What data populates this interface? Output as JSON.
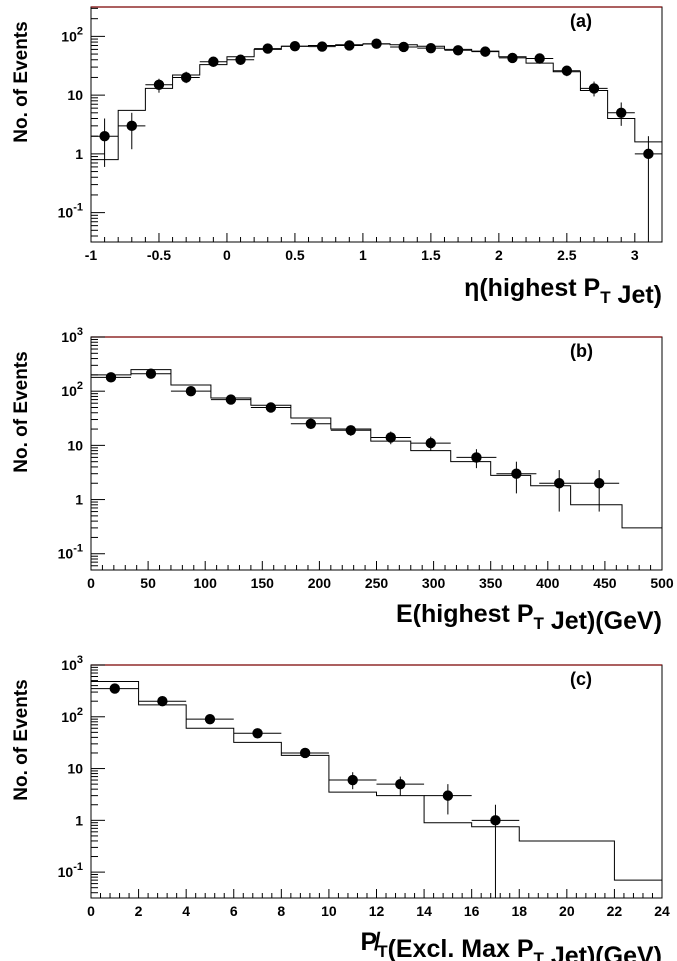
{
  "chart_data": [
    {
      "panel_label": "(a)",
      "type": "histogram-with-points",
      "ylabel": "No. of Events",
      "xlabel": "η(highest P_T Jet)",
      "xlim": [
        -1,
        3.2
      ],
      "ylim_log10": [
        -1.5,
        2.5
      ],
      "xticks": [
        -1,
        -0.5,
        0,
        0.5,
        1,
        1.5,
        2,
        2.5,
        3
      ],
      "xtick_labels": [
        "-1",
        "-0.5",
        "0",
        "0.5",
        "1",
        "1.5",
        "2",
        "2.5",
        "3"
      ],
      "yticks": [
        {
          "value": 0.1,
          "base": "10",
          "exp": "-1"
        },
        {
          "value": 1,
          "label": "1"
        },
        {
          "value": 10,
          "label": "10"
        },
        {
          "value": 100,
          "base": "10",
          "exp": "2"
        }
      ],
      "histogram": {
        "edges": [
          -1,
          -0.8,
          -0.6,
          -0.4,
          -0.2,
          0,
          0.2,
          0.4,
          0.6,
          0.8,
          1,
          1.2,
          1.4,
          1.6,
          1.8,
          2,
          2.2,
          2.4,
          2.6,
          2.8,
          3,
          3.2
        ],
        "values": [
          0.8,
          5.5,
          13,
          22,
          33,
          45,
          60,
          68,
          70,
          72,
          74,
          72,
          68,
          60,
          56,
          45,
          35,
          25,
          12,
          4,
          1.6
        ]
      },
      "points": [
        {
          "x": -0.9,
          "y": 2,
          "ylo": 0.6,
          "yhi": 4,
          "xerr": 0.1
        },
        {
          "x": -0.7,
          "y": 3,
          "ylo": 1.2,
          "yhi": 5,
          "xerr": 0.1
        },
        {
          "x": -0.5,
          "y": 15,
          "ylo": 11,
          "yhi": 19,
          "xerr": 0.1
        },
        {
          "x": -0.3,
          "y": 20,
          "ylo": 16,
          "yhi": 25,
          "xerr": 0.1
        },
        {
          "x": -0.1,
          "y": 37,
          "ylo": 31,
          "yhi": 43,
          "xerr": 0.1
        },
        {
          "x": 0.1,
          "y": 40,
          "ylo": 34,
          "yhi": 46,
          "xerr": 0.1
        },
        {
          "x": 0.3,
          "y": 62,
          "ylo": 54,
          "yhi": 70,
          "xerr": 0.1
        },
        {
          "x": 0.5,
          "y": 68,
          "ylo": 60,
          "yhi": 76,
          "xerr": 0.1
        },
        {
          "x": 0.7,
          "y": 67,
          "ylo": 59,
          "yhi": 75,
          "xerr": 0.1
        },
        {
          "x": 0.9,
          "y": 70,
          "ylo": 62,
          "yhi": 78,
          "xerr": 0.1
        },
        {
          "x": 1.1,
          "y": 75,
          "ylo": 67,
          "yhi": 83,
          "xerr": 0.1
        },
        {
          "x": 1.3,
          "y": 66,
          "ylo": 58,
          "yhi": 74,
          "xerr": 0.1
        },
        {
          "x": 1.5,
          "y": 63,
          "ylo": 55,
          "yhi": 71,
          "xerr": 0.1
        },
        {
          "x": 1.7,
          "y": 58,
          "ylo": 51,
          "yhi": 66,
          "xerr": 0.1
        },
        {
          "x": 1.9,
          "y": 55,
          "ylo": 48,
          "yhi": 62,
          "xerr": 0.1
        },
        {
          "x": 2.1,
          "y": 43,
          "ylo": 37,
          "yhi": 49,
          "xerr": 0.1
        },
        {
          "x": 2.3,
          "y": 42,
          "ylo": 36,
          "yhi": 48,
          "xerr": 0.1
        },
        {
          "x": 2.5,
          "y": 26,
          "ylo": 21,
          "yhi": 31,
          "xerr": 0.1
        },
        {
          "x": 2.7,
          "y": 13,
          "ylo": 9.5,
          "yhi": 17,
          "xerr": 0.1
        },
        {
          "x": 2.9,
          "y": 5,
          "ylo": 3,
          "yhi": 7.5,
          "xerr": 0.1
        },
        {
          "x": 3.1,
          "y": 1,
          "ylo": 0.02,
          "yhi": 2,
          "xerr": 0.1
        }
      ]
    },
    {
      "panel_label": "(b)",
      "type": "histogram-with-points",
      "ylabel": "No. of Events",
      "xlabel": "E(highest P_T Jet)(GeV)",
      "xlim": [
        0,
        500
      ],
      "ylim_log10": [
        -1.3,
        3
      ],
      "xticks": [
        0,
        50,
        100,
        150,
        200,
        250,
        300,
        350,
        400,
        450,
        500
      ],
      "xtick_labels": [
        "0",
        "50",
        "100",
        "150",
        "200",
        "250",
        "300",
        "350",
        "400",
        "450",
        "500"
      ],
      "yticks": [
        {
          "value": 0.1,
          "base": "10",
          "exp": "-1"
        },
        {
          "value": 1,
          "label": "1"
        },
        {
          "value": 10,
          "label": "10"
        },
        {
          "value": 100,
          "base": "10",
          "exp": "2"
        },
        {
          "value": 1000,
          "base": "10",
          "exp": "3"
        }
      ],
      "histogram": {
        "edges": [
          0,
          35,
          70,
          105,
          140,
          175,
          210,
          245,
          280,
          315,
          350,
          385,
          420,
          465,
          500
        ],
        "values": [
          200,
          250,
          130,
          75,
          55,
          32,
          20,
          12,
          8,
          5,
          2.8,
          1.8,
          0.8,
          0.3
        ]
      },
      "points": [
        {
          "x": 17.5,
          "y": 180,
          "ylo": 165,
          "yhi": 195,
          "xerr": 17.5
        },
        {
          "x": 52.5,
          "y": 210,
          "ylo": 195,
          "yhi": 225,
          "xerr": 17.5
        },
        {
          "x": 87.5,
          "y": 100,
          "ylo": 90,
          "yhi": 110,
          "xerr": 17.5
        },
        {
          "x": 122.5,
          "y": 70,
          "ylo": 62,
          "yhi": 78,
          "xerr": 17.5
        },
        {
          "x": 157.5,
          "y": 50,
          "ylo": 43,
          "yhi": 57,
          "xerr": 17.5
        },
        {
          "x": 192.5,
          "y": 25,
          "ylo": 20,
          "yhi": 30,
          "xerr": 17.5
        },
        {
          "x": 227.5,
          "y": 19,
          "ylo": 15,
          "yhi": 23,
          "xerr": 17.5
        },
        {
          "x": 262.5,
          "y": 14,
          "ylo": 10.5,
          "yhi": 18,
          "xerr": 17.5
        },
        {
          "x": 297.5,
          "y": 11,
          "ylo": 8,
          "yhi": 14.5,
          "xerr": 17.5
        },
        {
          "x": 337.5,
          "y": 6,
          "ylo": 3.8,
          "yhi": 8.5,
          "xerr": 17.5
        },
        {
          "x": 372.5,
          "y": 3,
          "ylo": 1.3,
          "yhi": 5,
          "xerr": 17.5
        },
        {
          "x": 410,
          "y": 2,
          "ylo": 0.6,
          "yhi": 3.5,
          "xerr": 17.5
        },
        {
          "x": 445,
          "y": 2,
          "ylo": 0.6,
          "yhi": 3.5,
          "xerr": 17.5
        }
      ]
    },
    {
      "panel_label": "(c)",
      "type": "histogram-with-points",
      "ylabel": "No. of Events",
      "xlabel": "P̸_T(Excl. Max P_T Jet)(GeV)",
      "xlim": [
        0,
        24
      ],
      "ylim_log10": [
        -1.5,
        3
      ],
      "xticks": [
        0,
        2,
        4,
        6,
        8,
        10,
        12,
        14,
        16,
        18,
        20,
        22,
        24
      ],
      "xtick_labels": [
        "0",
        "2",
        "4",
        "6",
        "8",
        "10",
        "12",
        "14",
        "16",
        "18",
        "20",
        "22",
        "24"
      ],
      "yticks": [
        {
          "value": 0.1,
          "base": "10",
          "exp": "-1"
        },
        {
          "value": 1,
          "label": "1"
        },
        {
          "value": 10,
          "label": "10"
        },
        {
          "value": 100,
          "base": "10",
          "exp": "2"
        },
        {
          "value": 1000,
          "base": "10",
          "exp": "3"
        }
      ],
      "histogram": {
        "edges": [
          0,
          2,
          4,
          6,
          8,
          10,
          12,
          14,
          16,
          18,
          20,
          22,
          24
        ],
        "values": [
          480,
          170,
          60,
          32,
          18,
          3.5,
          3,
          0.9,
          0.75,
          0.4,
          0.4,
          0.07
        ]
      },
      "points": [
        {
          "x": 1,
          "y": 350,
          "ylo": 320,
          "yhi": 380,
          "xerr": 1
        },
        {
          "x": 3,
          "y": 200,
          "ylo": 185,
          "yhi": 215,
          "xerr": 1
        },
        {
          "x": 5,
          "y": 90,
          "ylo": 80,
          "yhi": 100,
          "xerr": 1
        },
        {
          "x": 7,
          "y": 48,
          "ylo": 42,
          "yhi": 55,
          "xerr": 1
        },
        {
          "x": 9,
          "y": 20,
          "ylo": 16,
          "yhi": 24,
          "xerr": 1
        },
        {
          "x": 11,
          "y": 6,
          "ylo": 4,
          "yhi": 8.5,
          "xerr": 1
        },
        {
          "x": 13,
          "y": 5,
          "ylo": 3,
          "yhi": 7,
          "xerr": 1
        },
        {
          "x": 15,
          "y": 3,
          "ylo": 1.3,
          "yhi": 5,
          "xerr": 1
        },
        {
          "x": 17,
          "y": 1,
          "ylo": 0.02,
          "yhi": 2,
          "xerr": 1
        }
      ]
    }
  ]
}
